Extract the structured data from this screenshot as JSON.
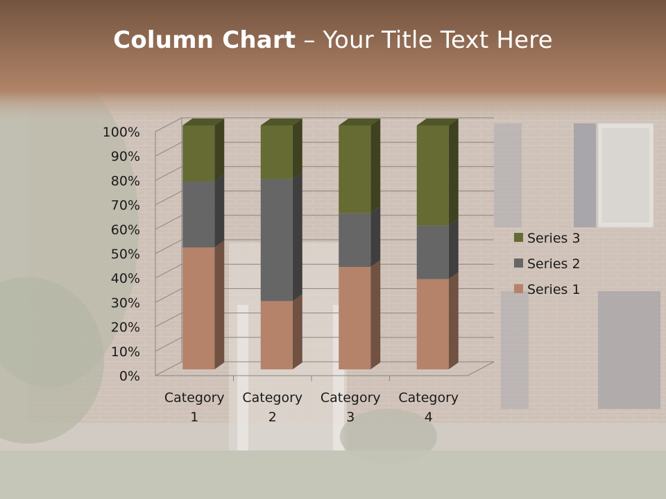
{
  "slide": {
    "title_bold": "Column Chart",
    "title_rest": " – Your Title Text Here"
  },
  "chart_data": {
    "type": "bar",
    "stacked": "percent",
    "categories": [
      "Category 1",
      "Category 2",
      "Category 3",
      "Category 4"
    ],
    "category_lines": [
      [
        "Category",
        "1"
      ],
      [
        "Category",
        "2"
      ],
      [
        "Category",
        "3"
      ],
      [
        "Category",
        "4"
      ]
    ],
    "series": [
      {
        "name": "Series 1",
        "values": [
          50,
          28,
          42,
          37
        ],
        "color": "#b5836a"
      },
      {
        "name": "Series 2",
        "values": [
          27,
          50,
          22,
          22
        ],
        "color": "#666666"
      },
      {
        "name": "Series 3",
        "values": [
          23,
          22,
          36,
          41
        ],
        "color": "#656b33"
      }
    ],
    "y_ticks": [
      "0%",
      "10%",
      "20%",
      "30%",
      "40%",
      "50%",
      "60%",
      "70%",
      "80%",
      "90%",
      "100%"
    ],
    "ylim": [
      0,
      100
    ],
    "grid": true,
    "legend_position": "right",
    "three_d": true
  },
  "colors": {
    "header_top": "#7a5a44",
    "header_bottom": "#b88a6e",
    "scene": "#c9c0b4"
  }
}
